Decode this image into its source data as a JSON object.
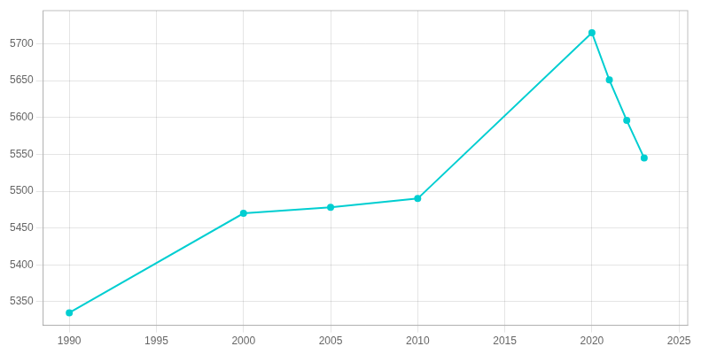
{
  "chart_data": {
    "type": "line",
    "x": [
      1990,
      2000,
      2005,
      2010,
      2020,
      2021,
      2022,
      2023
    ],
    "values": [
      5335,
      5470,
      5478,
      5490,
      5715,
      5651,
      5596,
      5545
    ],
    "color": "#00CED1",
    "marker": "circle",
    "xlim": [
      1988.5,
      2025.5
    ],
    "xticks": [
      1990,
      1995,
      2000,
      2005,
      2010,
      2015,
      2020,
      2025
    ],
    "ylim": [
      5318,
      5745
    ],
    "yticks": [
      5350,
      5400,
      5450,
      5500,
      5550,
      5600,
      5650,
      5700
    ],
    "grid": true
  }
}
